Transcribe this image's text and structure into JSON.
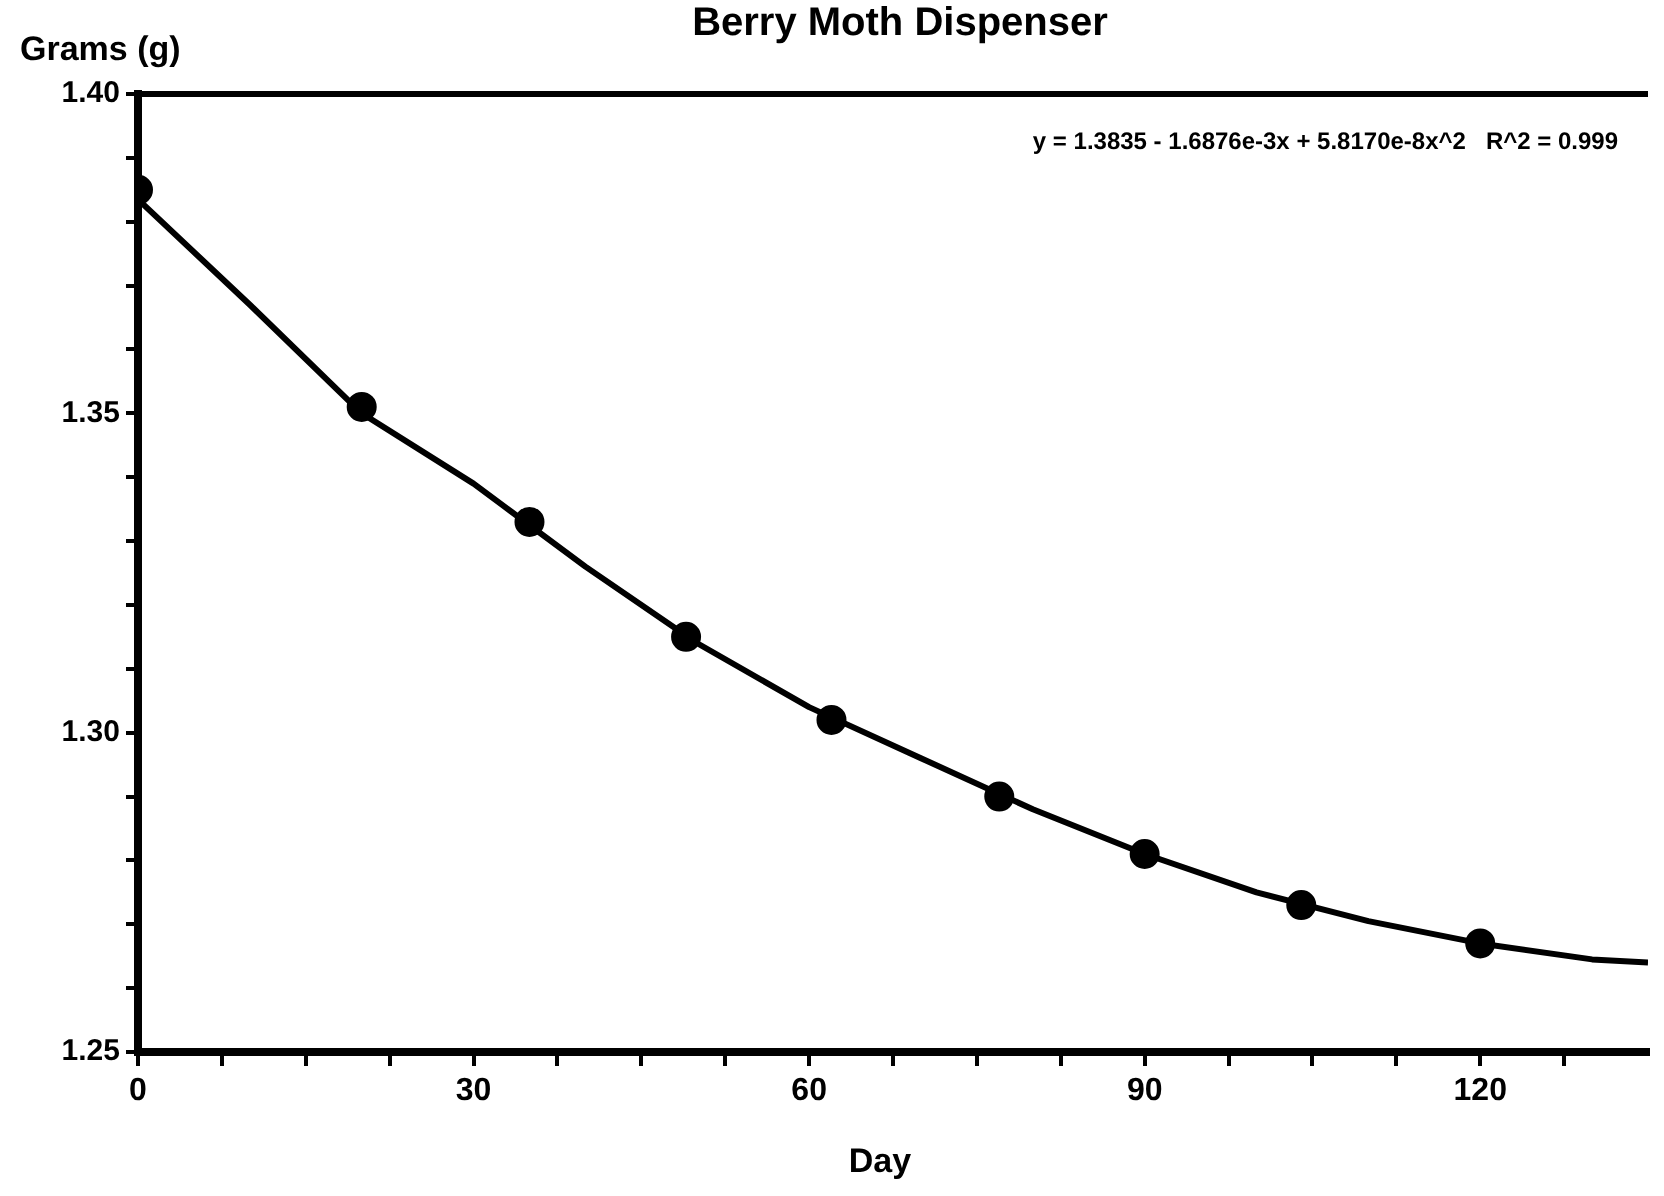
{
  "chart_data": {
    "type": "scatter",
    "title": "Berry Moth Dispenser",
    "xlabel": "Day",
    "ylabel": "Grams (g)",
    "annotations": [
      "y = 1.3835 - 1.6876e-3x + 5.8170e-8x^2   R^2 = 0.999"
    ],
    "xlim": [
      0,
      135
    ],
    "xticks": [
      0,
      {
        "value": 7.5,
        "label": null
      },
      {
        "value": 15,
        "label": null
      },
      {
        "value": 22.5,
        "label": null
      },
      30,
      {
        "value": 37.5,
        "label": null
      },
      {
        "value": 45,
        "label": null
      },
      {
        "value": 52.5,
        "label": null
      },
      60,
      {
        "value": 67.5,
        "label": null
      },
      {
        "value": 75,
        "label": null
      },
      {
        "value": 82.5,
        "label": null
      },
      90,
      {
        "value": 97.5,
        "label": null
      },
      {
        "value": 105,
        "label": null
      },
      {
        "value": 112.5,
        "label": null
      },
      120,
      {
        "value": 127.5,
        "label": null
      }
    ],
    "ylim": [
      1.25,
      1.4
    ],
    "yticks": [
      {
        "value": 1.25,
        "label": "1.25"
      },
      {
        "value": 1.26,
        "label": null
      },
      {
        "value": 1.27,
        "label": null
      },
      {
        "value": 1.28,
        "label": null
      },
      {
        "value": 1.29,
        "label": null
      },
      {
        "value": 1.3,
        "label": "1.30"
      },
      {
        "value": 1.31,
        "label": null
      },
      {
        "value": 1.32,
        "label": null
      },
      {
        "value": 1.33,
        "label": null
      },
      {
        "value": 1.34,
        "label": null
      },
      {
        "value": 1.35,
        "label": "1.35"
      },
      {
        "value": 1.36,
        "label": null
      },
      {
        "value": 1.37,
        "label": null
      },
      {
        "value": 1.38,
        "label": null
      },
      {
        "value": 1.39,
        "label": null
      },
      {
        "value": 1.4,
        "label": "1.40"
      }
    ],
    "grid": false,
    "legend": false,
    "series": [
      {
        "color": "#000000",
        "marker": "circle",
        "x": [
          0,
          20,
          35,
          49,
          62,
          77,
          90,
          104,
          120
        ],
        "values": [
          1.385,
          1.351,
          1.333,
          1.315,
          1.302,
          1.29,
          1.281,
          1.273,
          1.267
        ]
      },
      {
        "type": "line",
        "color": "#000000",
        "marker": "none",
        "line_style": "solid",
        "x": [
          0,
          10,
          20,
          30,
          40,
          50,
          60,
          70,
          80,
          90,
          100,
          110,
          120,
          130,
          135
        ],
        "values": [
          1.3835,
          1.367,
          1.35,
          1.339,
          1.326,
          1.314,
          1.304,
          1.296,
          1.288,
          1.281,
          1.275,
          1.2705,
          1.267,
          1.2645,
          1.264
        ]
      }
    ]
  }
}
